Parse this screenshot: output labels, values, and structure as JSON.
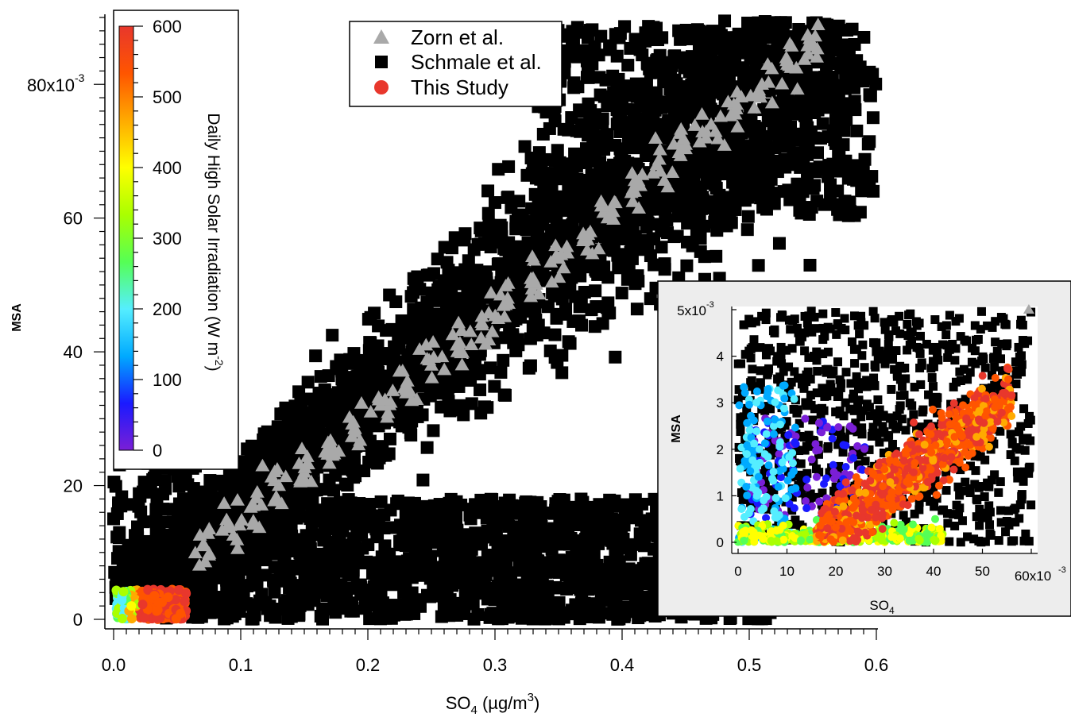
{
  "chart_data": [
    {
      "type": "scatter",
      "xlabel": "SO4 (µg/m3)",
      "xlabel_main": "SO",
      "xlabel_sub": "4",
      "xlabel_unit": " (µg/m",
      "xlabel_unit_sup": "3",
      "xlabel_close": ")",
      "ylabel": "MSA",
      "xlim": [
        0,
        0.6
      ],
      "ylim": [
        0,
        0.09
      ],
      "x_ticks": [
        "0.0",
        "0.1",
        "0.2",
        "0.3",
        "0.4",
        "0.5",
        "0.6"
      ],
      "y_ticks": [
        "0",
        "20",
        "40",
        "60",
        "80x10"
      ],
      "y_tick_exp": "-3",
      "grid": false,
      "legend_position": "top-center",
      "series": [
        {
          "name": "Zorn et al.",
          "marker": "triangle",
          "color": "#a9a9a9",
          "x": [
            0.07,
            0.09,
            0.11,
            0.13,
            0.15,
            0.17,
            0.19,
            0.21,
            0.23,
            0.25,
            0.27,
            0.29,
            0.31,
            0.33,
            0.35,
            0.37,
            0.39,
            0.41,
            0.43,
            0.45,
            0.47,
            0.49,
            0.51,
            0.53,
            0.55
          ],
          "y": [
            0.011,
            0.014,
            0.017,
            0.02,
            0.022,
            0.025,
            0.028,
            0.032,
            0.035,
            0.038,
            0.041,
            0.044,
            0.048,
            0.051,
            0.054,
            0.057,
            0.061,
            0.064,
            0.067,
            0.071,
            0.074,
            0.077,
            0.08,
            0.083,
            0.086
          ]
        },
        {
          "name": "Schmale et al.",
          "marker": "square",
          "color": "#000000",
          "x_range": [
            0.0,
            0.6
          ],
          "y_range": [
            0.0,
            0.09
          ]
        },
        {
          "name": "This Study",
          "marker": "circle",
          "color": "#e8372c",
          "x_range": [
            0.0,
            0.06
          ],
          "y_range": [
            0.0,
            0.005
          ]
        }
      ],
      "colorbar": {
        "label": "Daily High Solar Irradiation (W m",
        "label_sup": "-2",
        "label_close": ")",
        "range": [
          0,
          600
        ],
        "ticks": [
          "0",
          "100",
          "200",
          "300",
          "400",
          "500",
          "600"
        ],
        "colors": [
          "#7a1fd6",
          "#1a1aff",
          "#00aaff",
          "#55eeff",
          "#55ff55",
          "#aaff00",
          "#ffff00",
          "#ffaa00",
          "#ff5500",
          "#e8372c"
        ]
      }
    },
    {
      "type": "scatter",
      "title": "",
      "xlabel_main": "SO",
      "xlabel_sub": "4",
      "ylabel": "MSA",
      "xlim": [
        0,
        0.06
      ],
      "ylim": [
        0,
        0.005
      ],
      "x_ticks": [
        "0",
        "10",
        "20",
        "30",
        "40",
        "50",
        "60x10"
      ],
      "x_tick_exp": "-3",
      "y_ticks": [
        "0",
        "1",
        "2",
        "3",
        "4",
        "5x10"
      ],
      "y_tick_exp": "-3"
    }
  ]
}
